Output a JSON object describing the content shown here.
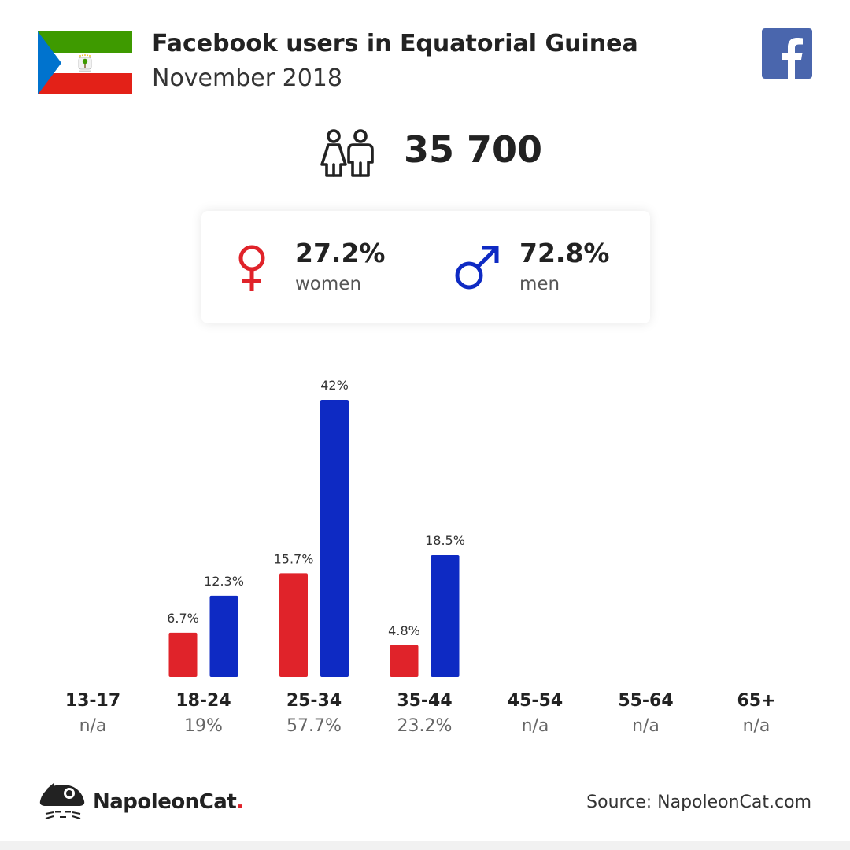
{
  "header": {
    "title": "Facebook users in Equatorial Guinea",
    "subtitle": "November 2018"
  },
  "flag": {
    "colors": {
      "green": "#3e9a00",
      "white": "#ffffff",
      "red": "#e32118",
      "blue": "#0073ce"
    },
    "emblem_icon": "coat-of-arms-icon"
  },
  "facebook_logo": {
    "icon": "facebook-icon",
    "color": "#4a66ad"
  },
  "summary": {
    "users_icon": "people-icon",
    "total_users": "35 700"
  },
  "gender": {
    "women": {
      "pct": "27.2%",
      "label": "women",
      "icon": "female-symbol-icon",
      "color": "#e0232a"
    },
    "men": {
      "pct": "72.8%",
      "label": "men",
      "icon": "male-symbol-icon",
      "color": "#0e2ac3"
    }
  },
  "chart_data": {
    "type": "bar",
    "categories": [
      "13-17",
      "18-24",
      "25-34",
      "35-44",
      "45-54",
      "55-64",
      "65+"
    ],
    "series": [
      {
        "values": [
          null,
          6.7,
          15.7,
          4.8,
          null,
          null,
          null
        ],
        "labels": [
          "",
          "6.7%",
          "15.7%",
          "4.8%",
          "",
          "",
          ""
        ],
        "color": "#e0232a"
      },
      {
        "values": [
          null,
          12.3,
          42,
          18.5,
          null,
          null,
          null
        ],
        "labels": [
          "",
          "12.3%",
          "42%",
          "18.5%",
          "",
          "",
          ""
        ],
        "color": "#0e2ac3"
      }
    ],
    "totals": [
      "n/a",
      "19%",
      "57.7%",
      "23.2%",
      "n/a",
      "n/a",
      "n/a"
    ],
    "ylim": [
      0,
      42
    ],
    "grid": false,
    "legend": "none"
  },
  "footer": {
    "brand": "NapoleonCat",
    "brand_dot": ".",
    "logo_icon": "napoleoncat-icon",
    "source": "Source: NapoleonCat.com"
  }
}
